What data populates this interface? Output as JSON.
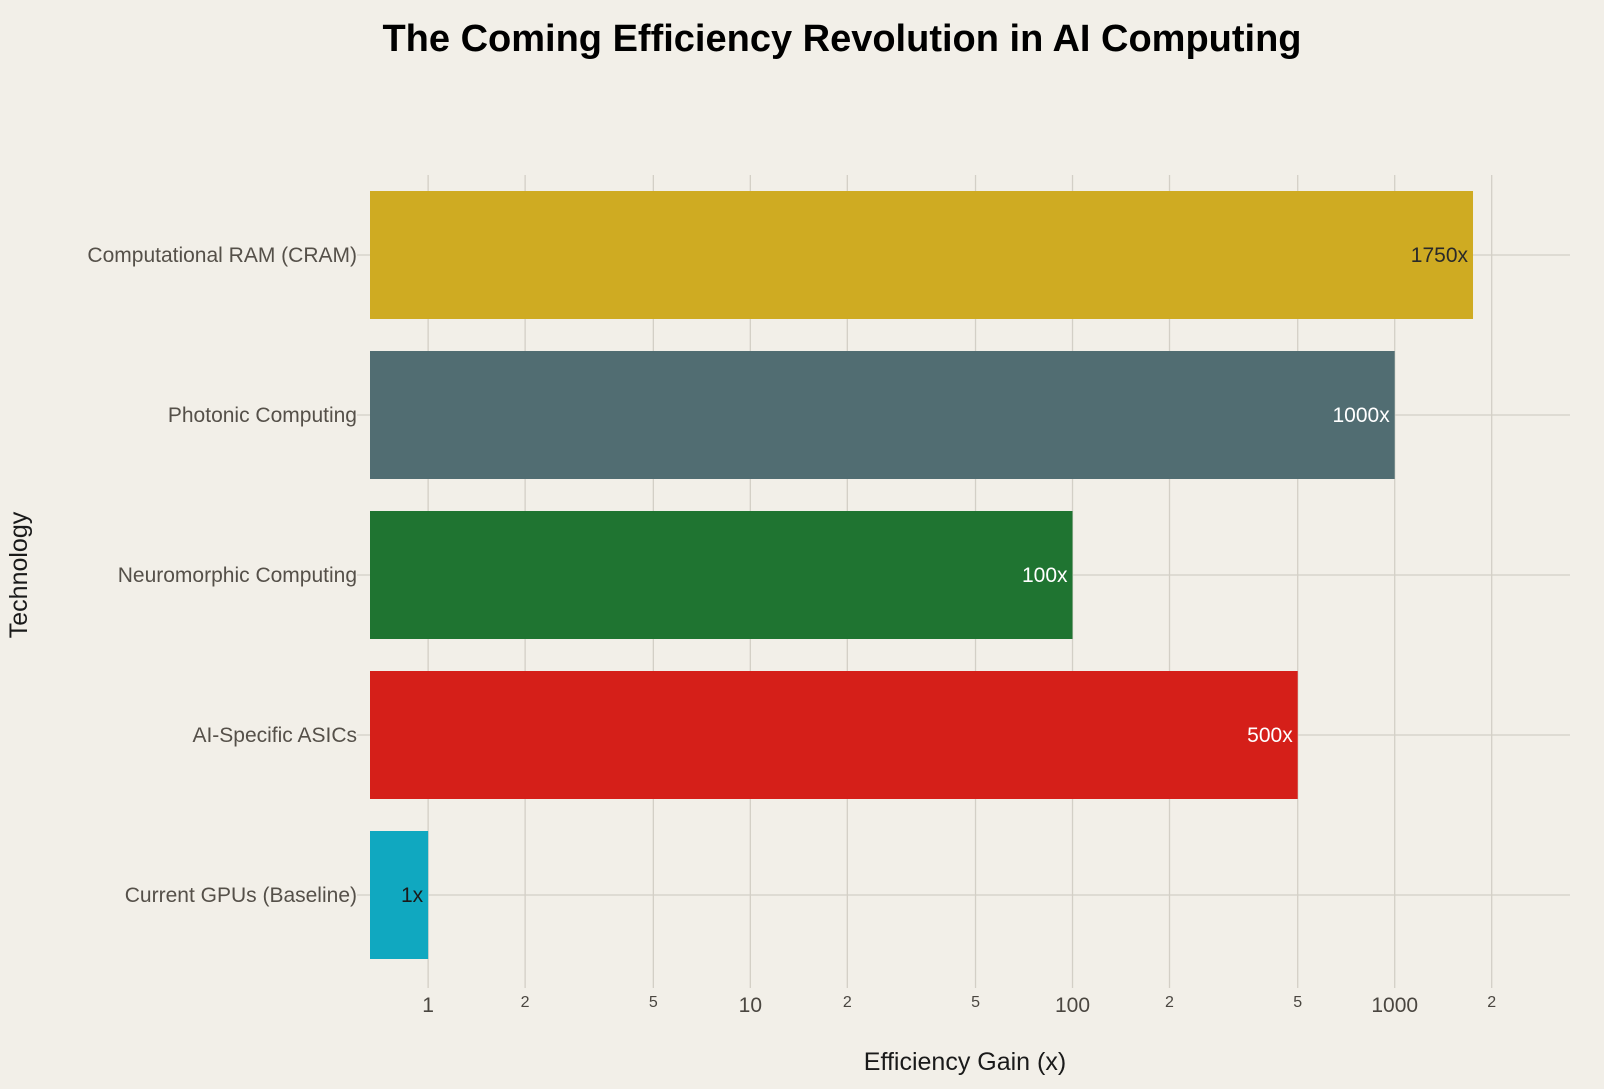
{
  "chart_data": {
    "type": "bar",
    "orientation": "horizontal",
    "title": "The Coming Efficiency Revolution in AI Computing",
    "xlabel": "Efficiency Gain (x)",
    "ylabel": "Technology",
    "xscale": "log",
    "xlim": [
      0.66,
      3500
    ],
    "grid": true,
    "legend": "none",
    "categories": [
      "Computational RAM (CRAM)",
      "Photonic Computing",
      "Neuromorphic Computing",
      "AI-Specific ASICs",
      "Current GPUs (Baseline)"
    ],
    "values": [
      1750,
      1000,
      100,
      500,
      1
    ],
    "data_labels": [
      "1750x",
      "1000x",
      "100x",
      "500x",
      "1x"
    ],
    "colors": [
      "#cfab22",
      "#516d72",
      "#1f7431",
      "#d51f19",
      "#10a8c0"
    ],
    "label_colors": [
      "#2a2a2a",
      "#ffffff",
      "#ffffff",
      "#ffffff",
      "#1a1a1a"
    ],
    "x_ticks": [
      {
        "value": 1,
        "label": "1",
        "major": true
      },
      {
        "value": 2,
        "label": "2",
        "major": false
      },
      {
        "value": 5,
        "label": "5",
        "major": false
      },
      {
        "value": 10,
        "label": "10",
        "major": true
      },
      {
        "value": 20,
        "label": "2",
        "major": false
      },
      {
        "value": 50,
        "label": "5",
        "major": false
      },
      {
        "value": 100,
        "label": "100",
        "major": true
      },
      {
        "value": 200,
        "label": "2",
        "major": false
      },
      {
        "value": 500,
        "label": "5",
        "major": false
      },
      {
        "value": 1000,
        "label": "1000",
        "major": true
      },
      {
        "value": 2000,
        "label": "2",
        "major": false
      }
    ]
  }
}
